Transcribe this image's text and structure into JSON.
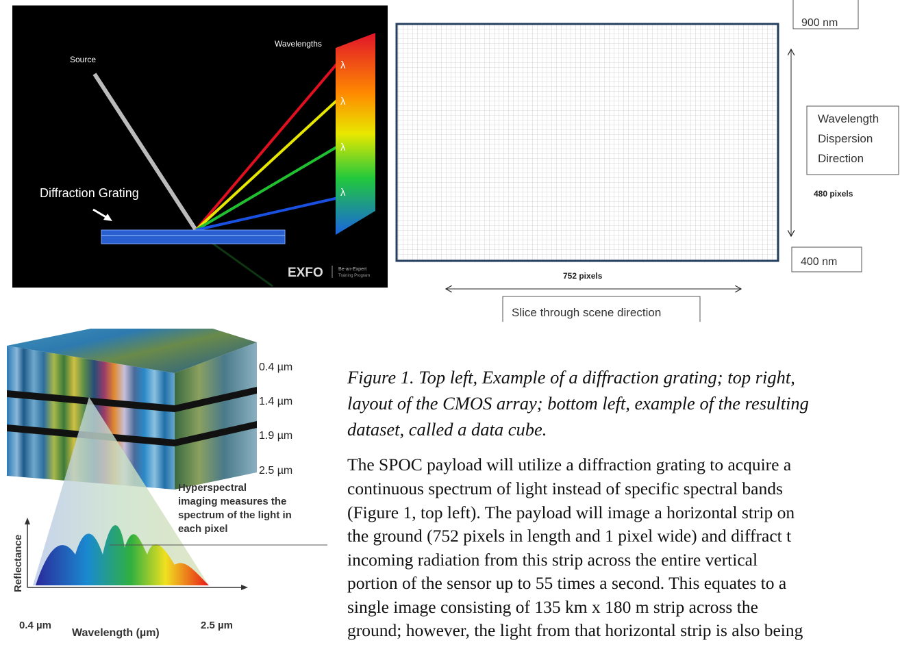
{
  "figure_grating": {
    "source": "Source",
    "wavelengths": "Wavelengths",
    "grating": "Diffraction Grating",
    "lambda": "λ",
    "logo": "EXFO",
    "logo_tagline": [
      "Be-an-Expert",
      "Training Program"
    ]
  },
  "figure_sensor": {
    "top_wavelength": "900 nm",
    "bottom_wavelength": "400 nm",
    "dispersion_label": [
      "Wavelength",
      "Dispersion",
      "Direction"
    ],
    "height_label": "480 pixels",
    "width_label": "752 pixels",
    "scan_label": "Slice through scene direction"
  },
  "figure_cube": {
    "band_labels": [
      "0.4 µm",
      "1.4 µm",
      "1.9 µm",
      "2.5 µm"
    ],
    "annotation": [
      "Hyperspectral",
      "imaging measures the",
      "spectrum of the light in",
      "each pixel"
    ],
    "y_axis_label": "Reflectance",
    "x_axis_label": "Wavelength (µm)",
    "x_start": "0.4 µm",
    "x_end": "2.5 µm"
  },
  "caption": [
    "Figure 1. Top left, Example of a diffraction grating; top right,",
    "layout of the CMOS array; bottom left, example of the resulting",
    "dataset, called a data cube."
  ],
  "body": [
    "The SPOC payload will utilize a diffraction grating to acquire a",
    "continuous spectrum of light instead of specific spectral bands",
    "(Figure 1, top left). The payload will image a horizontal strip on",
    "the ground (752 pixels in length and 1 pixel wide) and diffract t",
    "incoming radiation from this strip across the entire vertical",
    "portion of the sensor up to 55 times a second. This equates to a",
    "single image consisting of 135 km x 180 m strip across the",
    "ground; however, the light from that horizontal strip is also being"
  ]
}
